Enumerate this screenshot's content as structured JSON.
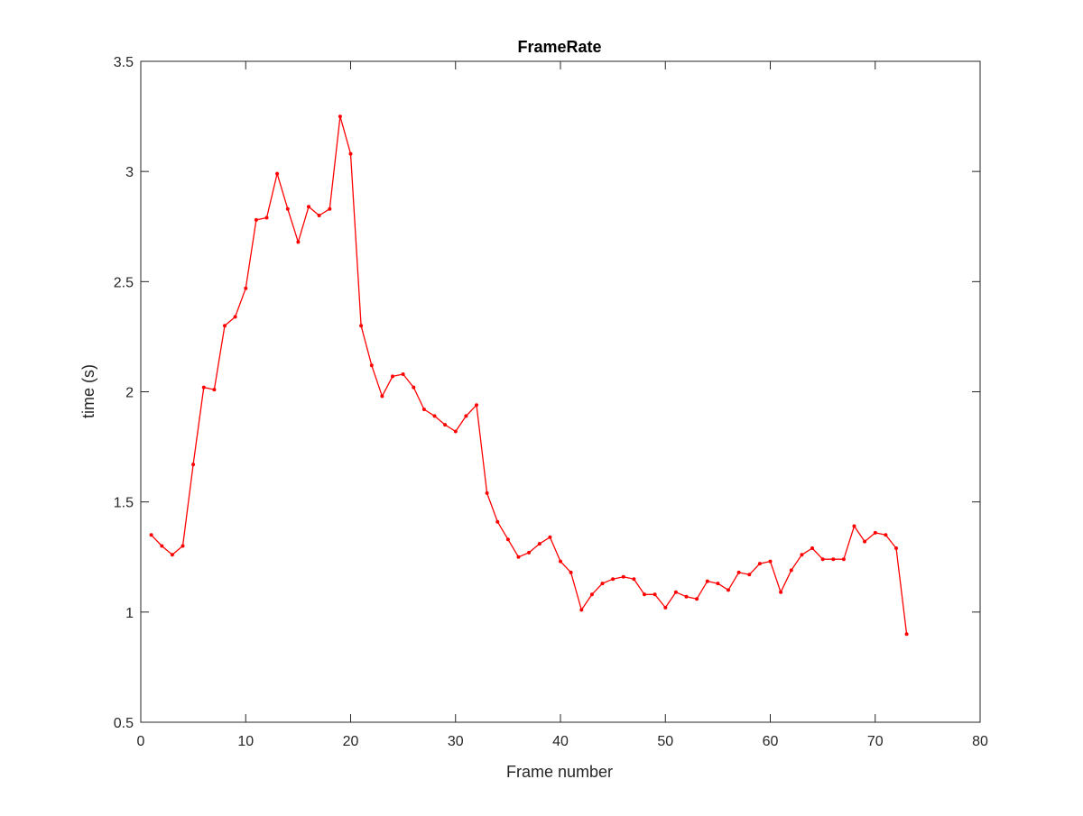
{
  "chart_data": {
    "type": "line",
    "title": "FrameRate",
    "xlabel": "Frame number",
    "ylabel": "time (s)",
    "xlim": [
      0,
      80
    ],
    "ylim": [
      0.5,
      3.5
    ],
    "x_ticks": [
      0,
      10,
      20,
      30,
      40,
      50,
      60,
      70,
      80
    ],
    "y_ticks": [
      0.5,
      1,
      1.5,
      2,
      2.5,
      3,
      3.5
    ],
    "x_tick_labels": [
      "0",
      "10",
      "20",
      "30",
      "40",
      "50",
      "60",
      "70",
      "80"
    ],
    "y_tick_labels": [
      "0.5",
      "1",
      "1.5",
      "2",
      "2.5",
      "3",
      "3.5"
    ],
    "grid": false,
    "legend": "none",
    "series": [
      {
        "color": "#ff0000",
        "marker": "dot",
        "x": [
          1,
          2,
          3,
          4,
          5,
          6,
          7,
          8,
          9,
          10,
          11,
          12,
          13,
          14,
          15,
          16,
          17,
          18,
          19,
          20,
          21,
          22,
          23,
          24,
          25,
          26,
          27,
          28,
          29,
          30,
          31,
          32,
          33,
          34,
          35,
          36,
          37,
          38,
          39,
          40,
          41,
          42,
          43,
          44,
          45,
          46,
          47,
          48,
          49,
          50,
          51,
          52,
          53,
          54,
          55,
          56,
          57,
          58,
          59,
          60,
          61,
          62,
          63,
          64,
          65,
          66,
          67,
          68,
          69,
          70,
          71,
          72,
          73
        ],
        "y": [
          1.35,
          1.3,
          1.26,
          1.3,
          1.67,
          2.02,
          2.01,
          2.3,
          2.34,
          2.47,
          2.78,
          2.79,
          2.99,
          2.83,
          2.68,
          2.84,
          2.8,
          2.83,
          3.25,
          3.08,
          2.3,
          2.12,
          1.98,
          2.07,
          2.08,
          2.02,
          1.92,
          1.89,
          1.85,
          1.82,
          1.89,
          1.94,
          1.54,
          1.41,
          1.33,
          1.25,
          1.27,
          1.31,
          1.34,
          1.23,
          1.18,
          1.01,
          1.08,
          1.13,
          1.15,
          1.16,
          1.15,
          1.08,
          1.08,
          1.02,
          1.09,
          1.07,
          1.06,
          1.14,
          1.13,
          1.1,
          1.18,
          1.17,
          1.22,
          1.23,
          1.09,
          1.19,
          1.26,
          1.29,
          1.24,
          1.24,
          1.24,
          1.39,
          1.32,
          1.36,
          1.35,
          1.29,
          0.9
        ]
      }
    ]
  }
}
